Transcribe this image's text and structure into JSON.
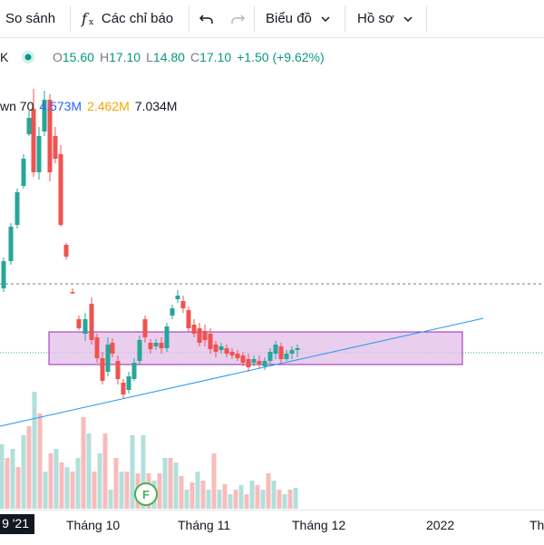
{
  "toolbar": {
    "compare_label": "So sánh",
    "indicators_label": "Các chỉ báo",
    "indicators_icon": "function-fx-icon",
    "undo_icon": "undo-icon",
    "redo_icon": "redo-icon",
    "chart_menu_label": "Biểu đồ",
    "profile_menu_label": "Hồ sơ"
  },
  "legend": {
    "symbol_tail": "K",
    "status_color": "#089981",
    "open_label": "O",
    "open": "15.60",
    "high_label": "H",
    "high": "17.10",
    "low_label": "L",
    "low": "14.80",
    "close_label": "C",
    "close": "17.10",
    "change": "+1.50 (+9.62%)",
    "volume_label": "wn 70",
    "volume_values": [
      "4.573M",
      "2.462M",
      "7.034M"
    ]
  },
  "time_axis": {
    "current": "9 '21",
    "labels": [
      "Tháng 10",
      "Tháng 11",
      "Tháng 12",
      "2022",
      "Th"
    ]
  },
  "markers": {
    "earnings_letter": "F"
  },
  "colors": {
    "up": "#26a69a",
    "down": "#ef5350",
    "zone_fill": "#e1bee7",
    "zone_stroke": "#9c27b0",
    "trendline": "#2196f3"
  }
}
